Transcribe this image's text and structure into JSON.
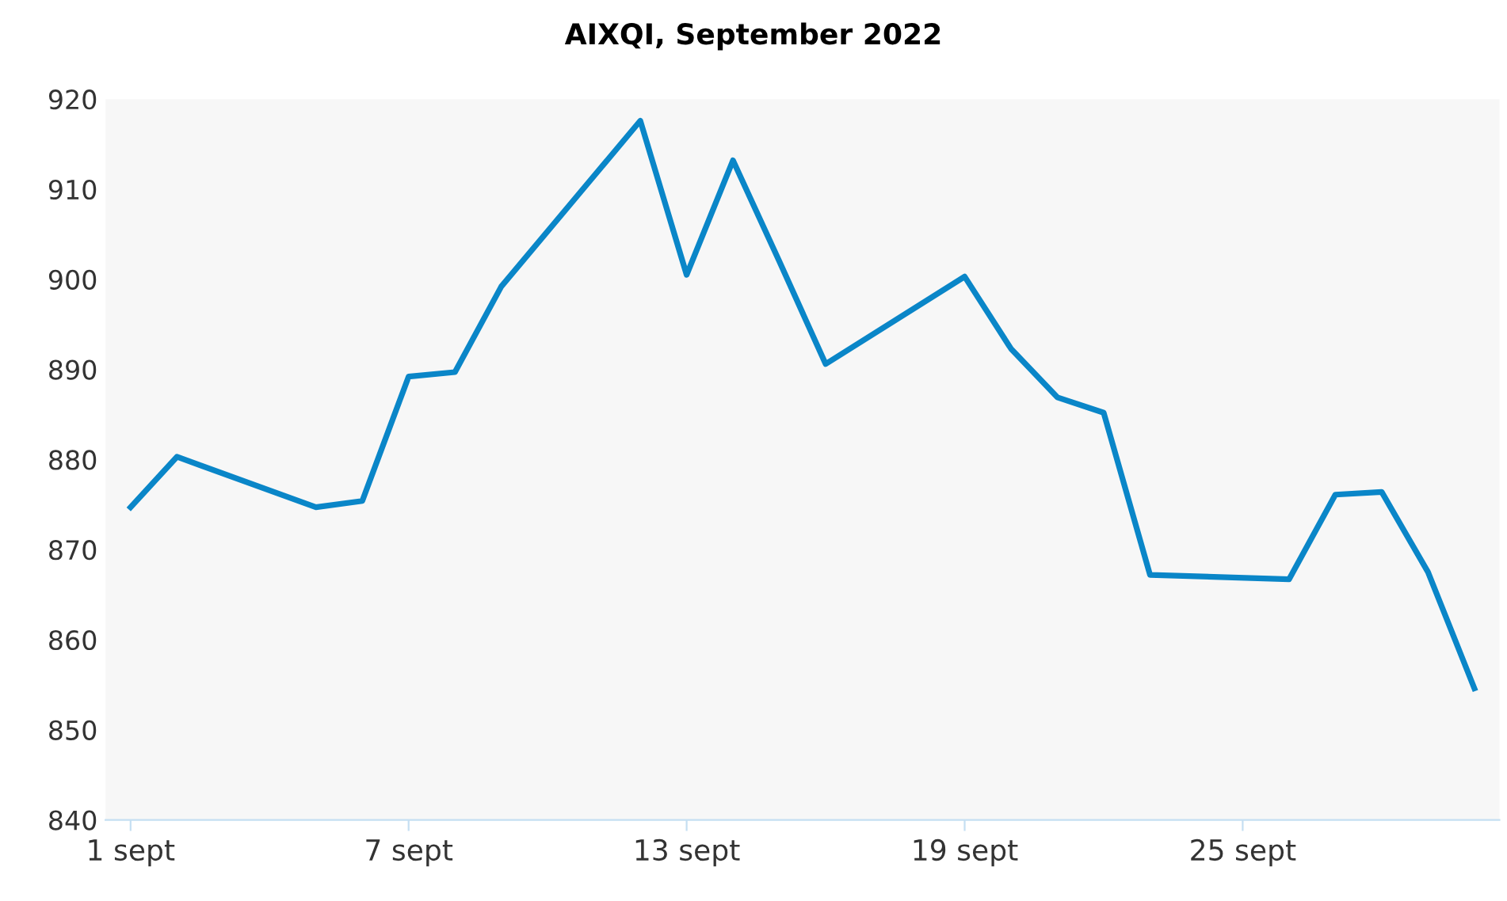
{
  "chart_data": {
    "type": "line",
    "title": "AIXQI, September 2022",
    "x": [
      "2022-09-01",
      "2022-09-02",
      "2022-09-05",
      "2022-09-06",
      "2022-09-07",
      "2022-09-08",
      "2022-09-09",
      "2022-09-12",
      "2022-09-13",
      "2022-09-14",
      "2022-09-15",
      "2022-09-16",
      "2022-09-19",
      "2022-09-20",
      "2022-09-21",
      "2022-09-22",
      "2022-09-23",
      "2022-09-26",
      "2022-09-27",
      "2022-09-28",
      "2022-09-29",
      "2022-09-30"
    ],
    "series": [
      {
        "color": "#0a86c8",
        "values": [
          874.7,
          880.3,
          874.7,
          875.4,
          889.2,
          889.7,
          899.2,
          917.6,
          900.5,
          913.2,
          902,
          890.6,
          900.3,
          892.3,
          886.9,
          885.2,
          867.2,
          866.7,
          876.1,
          876.4,
          867.5,
          854.6
        ]
      }
    ],
    "xlim": [
      "2022-08-31T11:00",
      "2022-09-30T13:00"
    ],
    "xticks": [
      {
        "value": "2022-09-01",
        "label": "1 sept"
      },
      {
        "value": "2022-09-07",
        "label": "7 sept"
      },
      {
        "value": "2022-09-13",
        "label": "13 sept"
      },
      {
        "value": "2022-09-19",
        "label": "19 sept"
      },
      {
        "value": "2022-09-25",
        "label": "25 sept"
      }
    ],
    "ylim": [
      840,
      920
    ],
    "yticks": [
      840,
      850,
      860,
      870,
      880,
      890,
      900,
      910,
      920
    ],
    "grid": false,
    "marker": "none",
    "line_style": "solid"
  }
}
